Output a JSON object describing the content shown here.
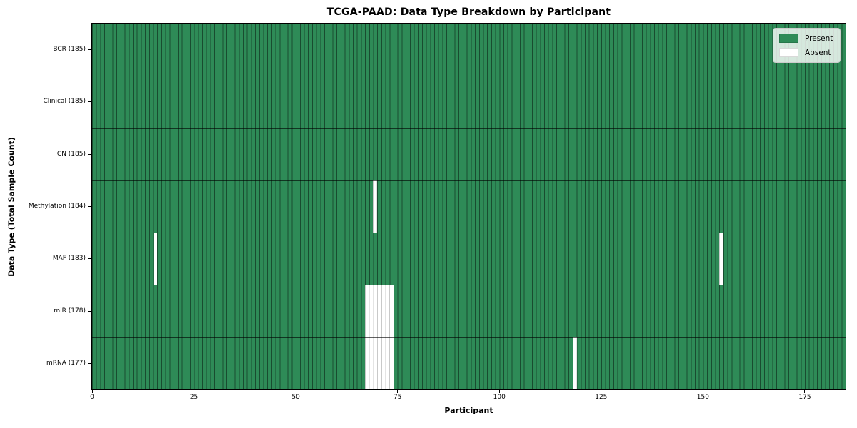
{
  "chart_data": {
    "type": "heatmap",
    "title": "TCGA-PAAD: Data Type Breakdown by Participant",
    "xlabel": "Participant",
    "ylabel": "Data Type (Total Sample Count)",
    "n_participants": 185,
    "xlim": [
      0,
      185
    ],
    "x_ticks": [
      0,
      25,
      50,
      75,
      100,
      125,
      150,
      175
    ],
    "grid": "cell-edges",
    "rows": [
      {
        "data_type": "BCR",
        "label": "BCR (185)",
        "total_sample_count": 185,
        "absent_participants": []
      },
      {
        "data_type": "Clinical",
        "label": "Clinical (185)",
        "total_sample_count": 185,
        "absent_participants": []
      },
      {
        "data_type": "CN",
        "label": "CN (185)",
        "total_sample_count": 185,
        "absent_participants": []
      },
      {
        "data_type": "Methylation",
        "label": "Methylation (184)",
        "total_sample_count": 184,
        "absent_participants": [
          69
        ]
      },
      {
        "data_type": "MAF",
        "label": "MAF (183)",
        "total_sample_count": 183,
        "absent_participants": [
          15,
          154
        ]
      },
      {
        "data_type": "miR",
        "label": "miR (178)",
        "total_sample_count": 178,
        "absent_participants": [
          67,
          68,
          69,
          70,
          71,
          72,
          73
        ]
      },
      {
        "data_type": "mRNA",
        "label": "mRNA (177)",
        "total_sample_count": 177,
        "absent_participants": [
          67,
          68,
          69,
          70,
          71,
          72,
          73,
          118
        ]
      }
    ],
    "colors": {
      "present": "#2e8b57",
      "absent": "#ffffff",
      "present_cell_edge": "rgba(0,0,0,0.45)",
      "absent_cell_edge": "#c9c9c9",
      "row_divider": "rgba(0,0,0,0.62)",
      "spine": "#000000"
    },
    "legend": {
      "position": "upper right",
      "entries": [
        {
          "label": "Present",
          "color": "#2e8b57"
        },
        {
          "label": "Absent",
          "color": "#ffffff"
        }
      ]
    }
  }
}
